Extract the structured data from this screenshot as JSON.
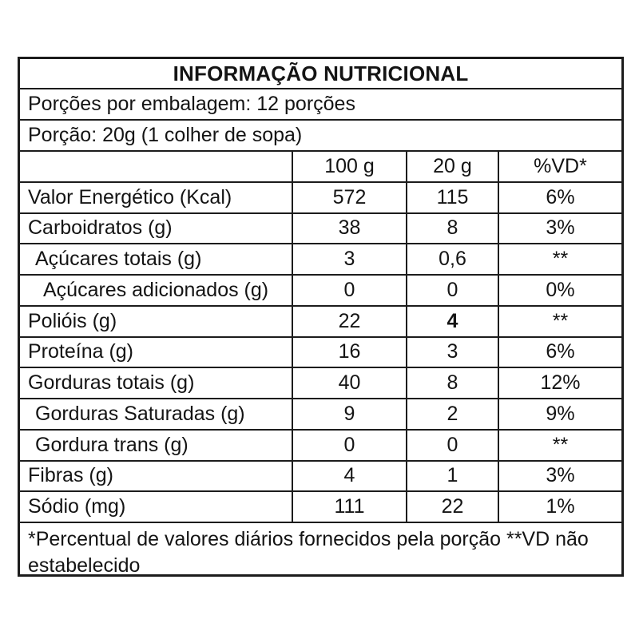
{
  "title": "INFORMAÇÃO NUTRICIONAL",
  "serving_info": {
    "servings_per_package": "Porções por embalagem: 12 porções",
    "serving_size": "Porção: 20g (1 colher de sopa)"
  },
  "columns": {
    "label": "",
    "per_100g": "100 g",
    "per_20g": "20 g",
    "daily_value": "%VD*"
  },
  "rows": [
    {
      "label": "Valor Energético (Kcal)",
      "v100": "572",
      "v20": "115",
      "vd": "6%"
    },
    {
      "label": "Carboidratos (g)",
      "v100": "38",
      "v20": "8",
      "vd": "3%"
    },
    {
      "label": "Açúcares totais (g)",
      "v100": "3",
      "v20": "0,6",
      "vd": "**"
    },
    {
      "label": "Açúcares adicionados (g)",
      "v100": "0",
      "v20": "0",
      "vd": "0%"
    },
    {
      "label": "Polióis (g)",
      "v100": "22",
      "v20": "4",
      "vd": "**"
    },
    {
      "label": "Proteína (g)",
      "v100": "16",
      "v20": "3",
      "vd": "6%"
    },
    {
      "label": "Gorduras totais (g)",
      "v100": "40",
      "v20": "8",
      "vd": "12%"
    },
    {
      "label": "Gorduras Saturadas (g)",
      "v100": "9",
      "v20": "2",
      "vd": "9%"
    },
    {
      "label": "Gordura trans (g)",
      "v100": "0",
      "v20": "0",
      "vd": "**"
    },
    {
      "label": "Fibras (g)",
      "v100": "4",
      "v20": "1",
      "vd": "3%"
    },
    {
      "label": "Sódio (mg)",
      "v100": "111",
      "v20": "22",
      "vd": "1%"
    }
  ],
  "footnote": "*Percentual de valores diários fornecidos pela porção **VD não estabelecido",
  "colors": {
    "border": "#1c1c1c",
    "text": "#141414",
    "background": "#ffffff"
  }
}
